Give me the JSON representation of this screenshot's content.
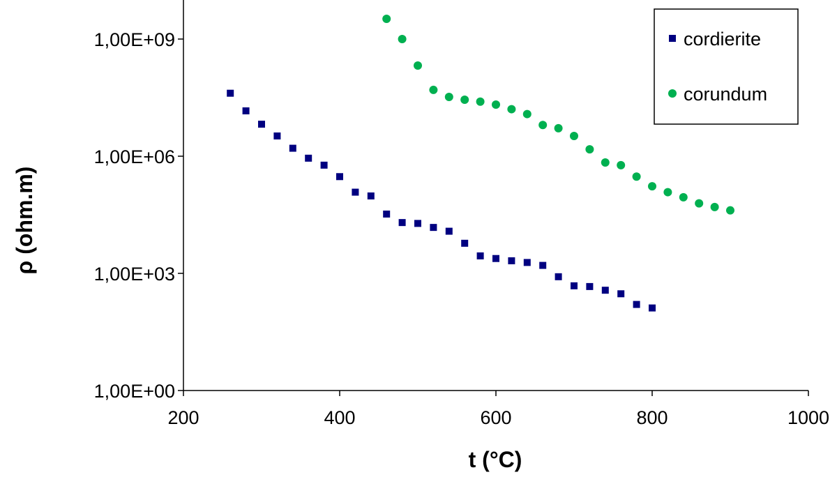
{
  "chart_data": {
    "type": "scatter",
    "xlabel": "t (°C)",
    "ylabel": "ρ (ohm.m)",
    "xlim": [
      200,
      1000
    ],
    "xticks": [
      200,
      400,
      600,
      800,
      1000
    ],
    "ylim": [
      1,
      10000000000
    ],
    "log_y": true,
    "yticks": [
      {
        "value": 1,
        "label": "1,00E+00"
      },
      {
        "value": 1000,
        "label": "1,00E+03"
      },
      {
        "value": 1000000,
        "label": "1,00E+06"
      },
      {
        "value": 1000000000,
        "label": "1,00E+09"
      }
    ],
    "grid": false,
    "legend": "upper right",
    "series": [
      {
        "name": "cordierite",
        "color": "#000080",
        "marker": "square",
        "x": [
          260,
          280,
          300,
          320,
          340,
          360,
          380,
          400,
          420,
          440,
          460,
          480,
          500,
          520,
          540,
          560,
          580,
          600,
          620,
          640,
          660,
          680,
          700,
          720,
          740,
          760,
          780,
          800
        ],
        "values": [
          41000000,
          14500000,
          6600000,
          3300000,
          1600000,
          890000,
          590000,
          300000,
          120000,
          96000,
          33000,
          20000,
          19000,
          15000,
          12000,
          5900,
          2800,
          2400,
          2100,
          1900,
          1600,
          820,
          480,
          460,
          370,
          300,
          160,
          130
        ]
      },
      {
        "name": "corundum",
        "color": "#00b050",
        "marker": "circle",
        "x": [
          460,
          480,
          500,
          520,
          540,
          560,
          580,
          600,
          620,
          640,
          660,
          680,
          700,
          720,
          740,
          760,
          780,
          800,
          820,
          840,
          860,
          880,
          900
        ],
        "values": [
          3300000000,
          1000000000,
          210000000,
          50000000,
          33000000,
          28000000,
          25000000,
          21000000,
          16000000,
          12000000,
          6300000,
          5200000,
          3300000,
          1500000,
          690000,
          590000,
          300000,
          170000,
          120000,
          89000,
          62000,
          50000,
          41000
        ]
      }
    ]
  }
}
